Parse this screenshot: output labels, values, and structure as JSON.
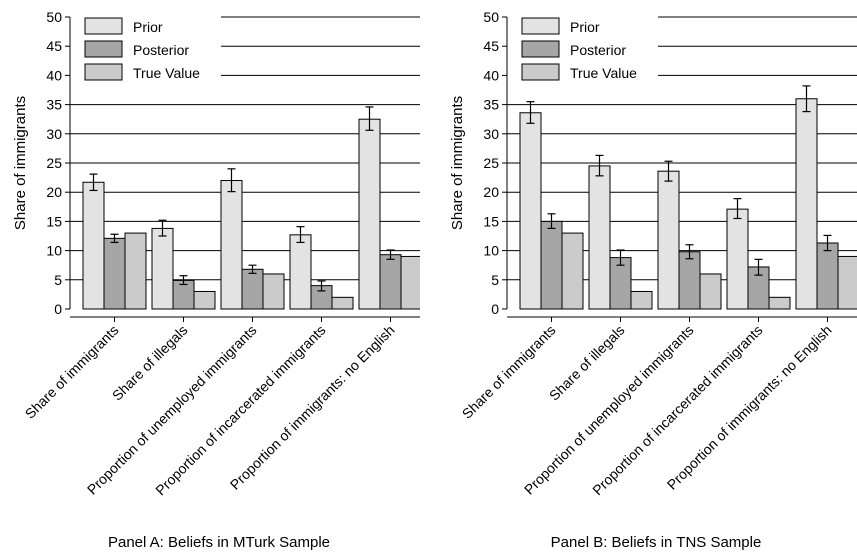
{
  "chart_data": [
    {
      "type": "bar",
      "caption": "Panel A: Beliefs in MTurk Sample",
      "ylabel": "Share of immigrants",
      "ylim": [
        0,
        50
      ],
      "yticks": [
        0,
        5,
        10,
        15,
        20,
        25,
        30,
        35,
        40,
        45,
        50
      ],
      "grid": true,
      "legend_position": "top-left",
      "categories": [
        "Share of immigrants",
        "Share of illegals",
        "Proportion of unemployed immigrants",
        "Proportion of incarcerated immigrants",
        "Proportion of immigrants: no English"
      ],
      "series": [
        {
          "name": "Prior",
          "color": "#e3e3e3",
          "values": [
            21.7,
            13.8,
            22.0,
            12.7,
            32.5
          ],
          "error_bars": [
            [
              20.3,
              23.1
            ],
            [
              12.5,
              15.2
            ],
            [
              20.1,
              24.0
            ],
            [
              11.4,
              14.1
            ],
            [
              30.6,
              34.6
            ]
          ]
        },
        {
          "name": "Posterior",
          "color": "#a6a6a6",
          "values": [
            12.1,
            4.9,
            6.8,
            4.0,
            9.3
          ],
          "error_bars": [
            [
              11.4,
              12.8
            ],
            [
              4.2,
              5.7
            ],
            [
              6.1,
              7.5
            ],
            [
              3.1,
              4.8
            ],
            [
              8.5,
              10.1
            ]
          ]
        },
        {
          "name": "True Value",
          "color": "#cbcbcb",
          "values": [
            13,
            3,
            6,
            2,
            9
          ]
        }
      ]
    },
    {
      "type": "bar",
      "caption": "Panel B: Beliefs in TNS Sample",
      "ylabel": "Share of immigrants",
      "ylim": [
        0,
        50
      ],
      "yticks": [
        0,
        5,
        10,
        15,
        20,
        25,
        30,
        35,
        40,
        45,
        50
      ],
      "grid": true,
      "legend_position": "top-left",
      "categories": [
        "Share of immigrants",
        "Share of illegals",
        "Proportion of unemployed immigrants",
        "Proportion of incarcerated immigrants",
        "Proportion of immigrants: no English"
      ],
      "series": [
        {
          "name": "Prior",
          "color": "#e3e3e3",
          "values": [
            33.6,
            24.5,
            23.6,
            17.1,
            36.0
          ],
          "error_bars": [
            [
              31.8,
              35.5
            ],
            [
              22.8,
              26.3
            ],
            [
              21.9,
              25.3
            ],
            [
              15.5,
              18.9
            ],
            [
              33.8,
              38.2
            ]
          ]
        },
        {
          "name": "Posterior",
          "color": "#a6a6a6",
          "values": [
            15.0,
            8.8,
            9.8,
            7.2,
            11.3
          ],
          "error_bars": [
            [
              13.8,
              16.3
            ],
            [
              7.5,
              10.1
            ],
            [
              8.6,
              11.0
            ],
            [
              5.8,
              8.5
            ],
            [
              10.0,
              12.6
            ]
          ]
        },
        {
          "name": "True Value",
          "color": "#cbcbcb",
          "values": [
            13,
            3,
            6,
            2,
            9
          ]
        }
      ]
    }
  ]
}
